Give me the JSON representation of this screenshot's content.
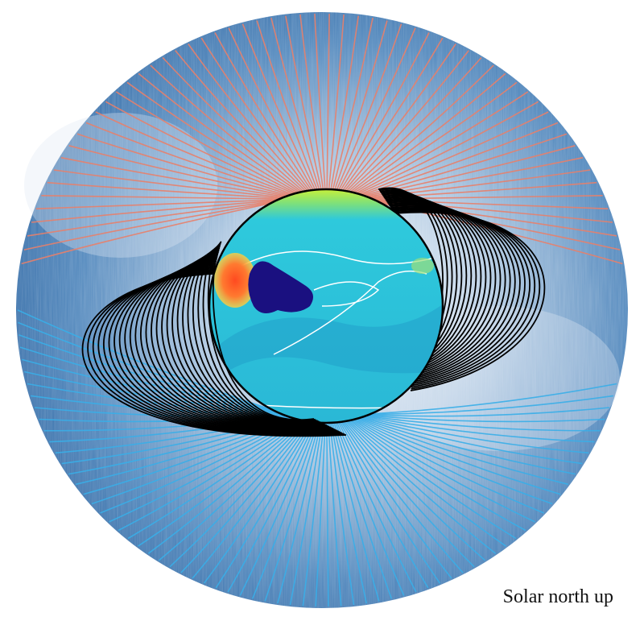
{
  "caption": "Solar north up",
  "colors": {
    "background": "#ffffff",
    "corona_dark": "#2a64a2",
    "corona_light": "#dde8f2",
    "open_field_north": "#e8806a",
    "open_field_south": "#39aee8",
    "closed_loops": "#000000",
    "sun_surface": "#2ec9dc",
    "sun_north_cap": "#c8f03a",
    "active_region_positive": "#ff5a2a",
    "active_region_negative": "#1a1080",
    "contour_lines": "#ffffff"
  },
  "icons": {
    "open_field_north": "red-open-field-lines",
    "open_field_south": "blue-open-field-lines",
    "closed_loops": "black-closed-loop-lines",
    "sun": "photosphere-magnetic-map"
  }
}
